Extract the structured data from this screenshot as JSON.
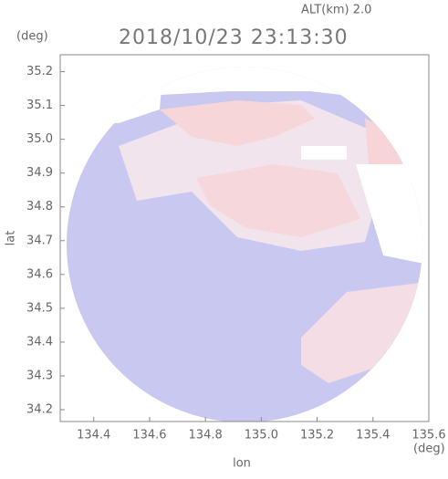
{
  "chart_data": {
    "type": "map",
    "title": "2018/10/23 23:13:30",
    "subtitle": "ALT(km) 2.0",
    "y_unit": "(deg)",
    "x_unit": "(deg)",
    "ylabel": "lat",
    "xlabel": "lon",
    "xlim": [
      134.28,
      135.6
    ],
    "xticks": [
      134.4,
      134.6,
      134.8,
      {
        "value": 135.0,
        "label": "135.0"
      },
      135.2,
      135.4,
      135.6
    ],
    "ylim": [
      34.165,
      35.25
    ],
    "yticks": [
      34.2,
      34.3,
      34.4,
      34.5,
      34.6,
      34.7,
      34.8,
      34.9,
      {
        "value": 35.0,
        "label": "35.0"
      },
      35.1,
      35.2
    ]
  }
}
